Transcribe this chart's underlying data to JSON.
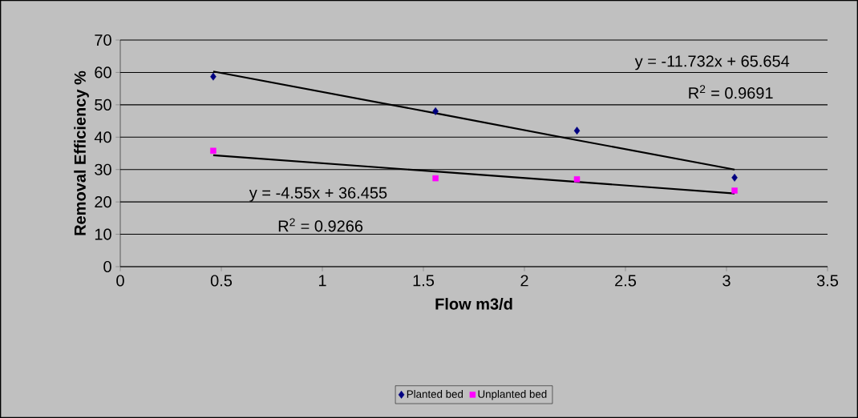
{
  "chart_data": {
    "type": "scatter",
    "xlabel": "Flow m3/d",
    "ylabel": "Removal Efficiency %",
    "xlim": [
      0,
      3.5
    ],
    "xticks": [
      0,
      0.5,
      1,
      1.5,
      2,
      2.5,
      3,
      3.5
    ],
    "ylim": [
      0,
      70
    ],
    "yticks": [
      0,
      10,
      20,
      30,
      40,
      50,
      60,
      70
    ],
    "grid": "y",
    "legend": "bottom",
    "x": [
      0.46,
      1.56,
      2.26,
      3.04
    ],
    "series": [
      {
        "name": "Planted bed",
        "color": "#000080",
        "marker": "diamond",
        "values": [
          58.7,
          48,
          42,
          27.5
        ]
      },
      {
        "name": "Unplanted bed",
        "color": "#ff00ff",
        "marker": "square",
        "values": [
          35.8,
          27.3,
          27,
          23.5
        ]
      },
      {
        "type": "line",
        "color": "#000000",
        "values": [
          60.3,
          47.4,
          39.1,
          30.0
        ]
      },
      {
        "type": "line",
        "color": "#000000",
        "values": [
          34.4,
          29.4,
          26.2,
          22.6
        ]
      }
    ],
    "annotations": [
      "y = -11.732x + 65.654",
      "R$^{2}$ = 0.9691",
      "y = -4.55x + 36.455",
      "R$^{2}$ = 0.9266"
    ]
  }
}
